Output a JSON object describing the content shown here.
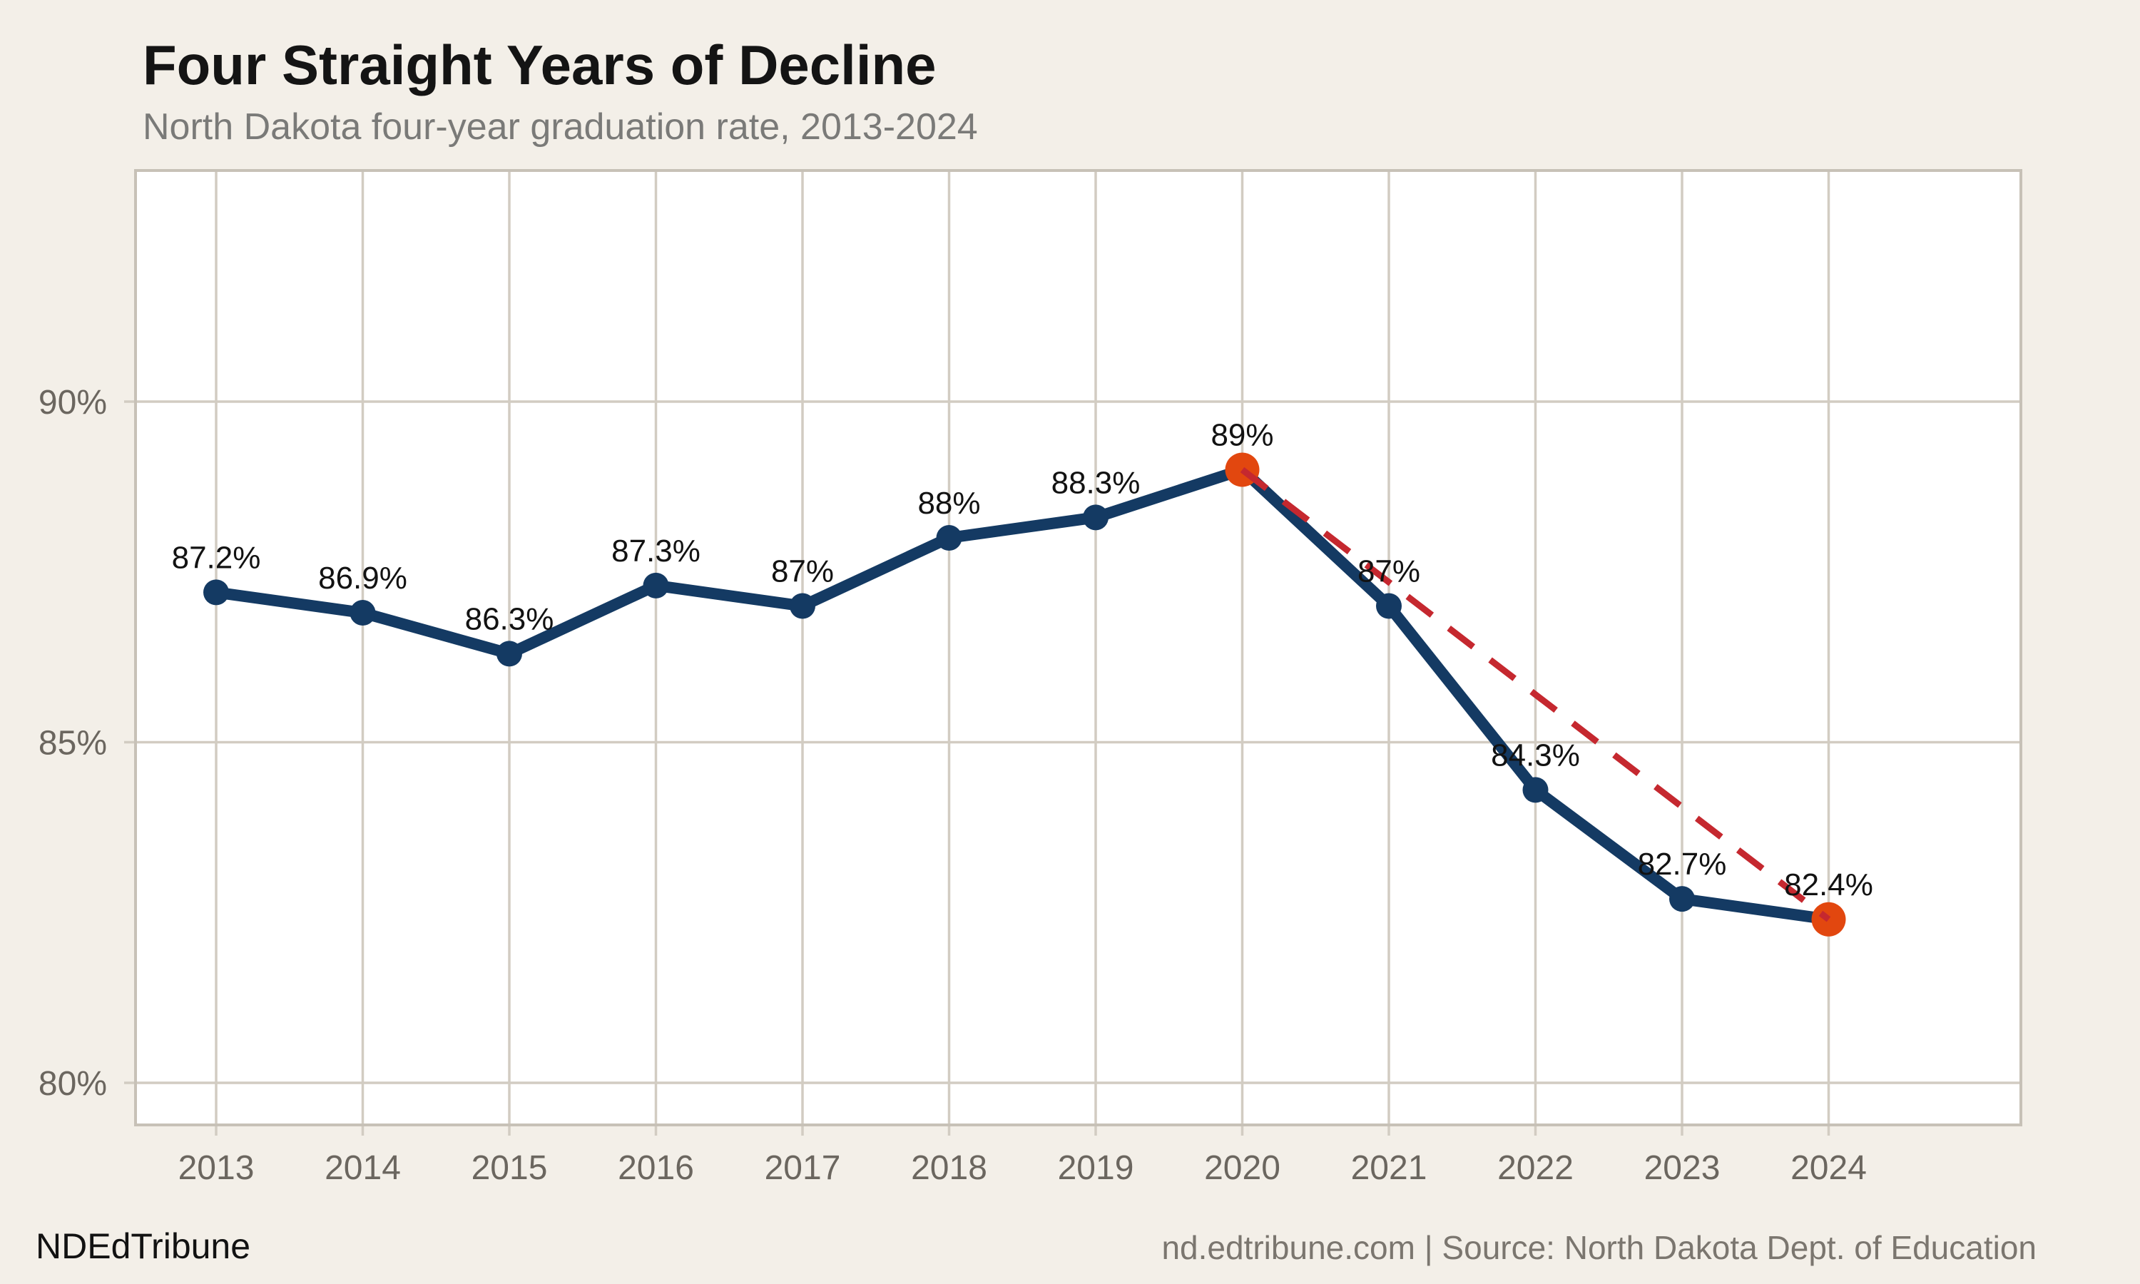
{
  "header": {
    "title": "Four Straight Years of Decline",
    "subtitle": "North Dakota four-year graduation rate, 2013-2024"
  },
  "footer": {
    "brand": "NDEdTribune",
    "source": "nd.edtribune.com | Source: North Dakota Dept. of Education"
  },
  "chart_data": {
    "type": "line",
    "title": "Four Straight Years of Decline",
    "subtitle": "North Dakota four-year graduation rate, 2013-2024",
    "x": [
      2013,
      2014,
      2015,
      2016,
      2017,
      2018,
      2019,
      2020,
      2021,
      2022,
      2023,
      2024
    ],
    "series": [
      {
        "name": "Four-year graduation rate",
        "values": [
          87.2,
          86.9,
          86.3,
          87.3,
          87.0,
          88.0,
          88.3,
          89.0,
          87.0,
          84.3,
          82.7,
          82.4
        ]
      }
    ],
    "point_labels": [
      "87.2%",
      "86.9%",
      "86.3%",
      "87.3%",
      "87%",
      "88%",
      "88.3%",
      "89%",
      "87%",
      "84.3%",
      "82.7%",
      "82.4%"
    ],
    "highlight_years": [
      2020,
      2024
    ],
    "trend_line": {
      "from_year": 2020,
      "to_year": 2024,
      "style": "dashed"
    },
    "y_ticks": [
      {
        "value": 90,
        "label": "90%"
      },
      {
        "value": 85,
        "label": "85%"
      },
      {
        "value": 80,
        "label": "80%"
      }
    ],
    "ylim": [
      79.4,
      93.4
    ],
    "grid": true,
    "legend": "none",
    "colors": {
      "background": "#f3efe8",
      "plot_background": "#ffffff",
      "grid": "#d2ccc2",
      "border": "#c7c1b7",
      "axis_text": "#6b665f",
      "line": "#143a63",
      "point": "#143a63",
      "highlight_point": "#e2470f",
      "dashed_line": "#c5282f",
      "label_text": "#121212"
    }
  }
}
